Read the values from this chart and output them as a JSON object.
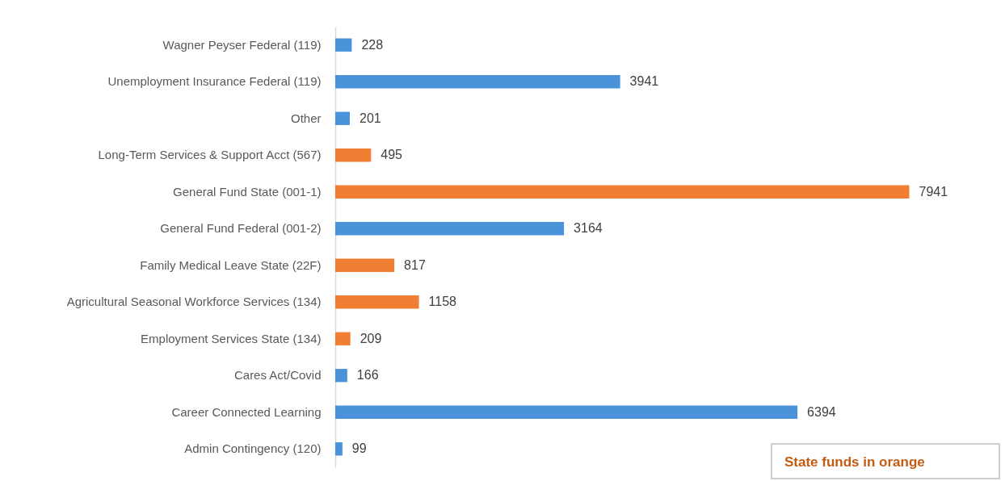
{
  "chart_data": {
    "type": "bar",
    "orientation": "horizontal",
    "categories": [
      "Wagner Peyser Federal (119)",
      "Unemployment Insurance Federal (119)",
      "Other",
      "Long-Term Services & Support Acct (567)",
      "General Fund State (001-1)",
      "General Fund Federal (001-2)",
      "Family Medical Leave State (22F)",
      "Agricultural Seasonal Workforce Services (134)",
      "Employment Services State (134)",
      "Cares Act/Covid",
      "Career Connected Learning",
      "Admin Contingency (120)"
    ],
    "values": [
      228,
      3941,
      201,
      495,
      7941,
      3164,
      817,
      1158,
      209,
      166,
      6394,
      99
    ],
    "colors": [
      "#4a93db",
      "#4a93db",
      "#4a93db",
      "#f07f33",
      "#f07f33",
      "#4a93db",
      "#f07f33",
      "#f07f33",
      "#f07f33",
      "#4a93db",
      "#4a93db",
      "#4a93db"
    ],
    "data_labels": true,
    "annotations": [
      "State funds in orange"
    ]
  }
}
